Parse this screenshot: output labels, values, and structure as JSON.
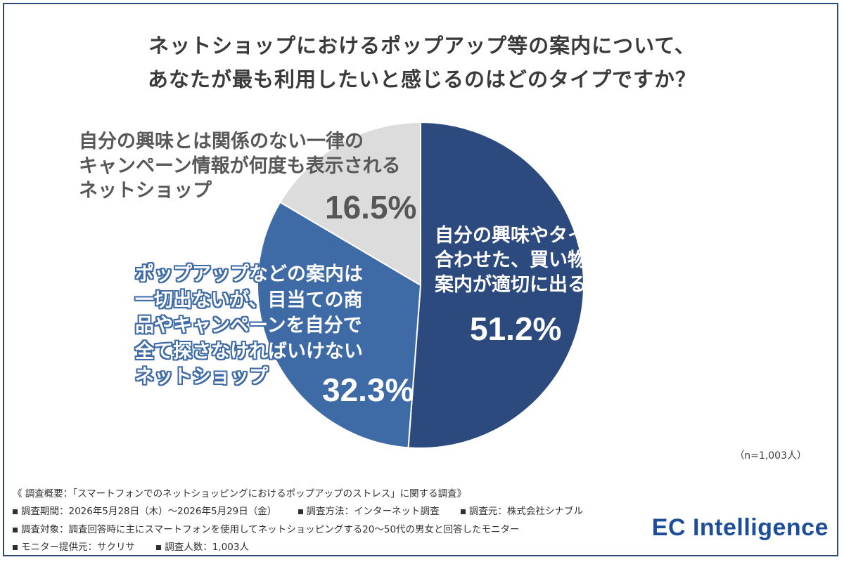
{
  "title_lines": [
    "ネットショップにおけるポップアップ等の案内について、",
    "あなたが最も利用したいと感じるのはどのタイプですか？"
  ],
  "chart_data": {
    "type": "pie",
    "slices": [
      {
        "label_lines": [
          "自分の興味やタイミングに",
          "合わせた、買い物の参考になる",
          "案内が適切に出るネットショップ"
        ],
        "value": 51.2,
        "value_label": "51.2%",
        "color": "#2d4a7f"
      },
      {
        "label_lines": [
          "ポップアップなどの案内は",
          "一切出ないが、目当ての商",
          "品やキャンペーンを自分で",
          "全て探さなければいけない",
          "ネットショップ"
        ],
        "value": 32.3,
        "value_label": "32.3%",
        "color": "#3e6aa6"
      },
      {
        "label_lines": [
          "自分の興味とは関係のない一律の",
          "キャンペーン情報が何度も表示される",
          "ネットショップ"
        ],
        "value": 16.5,
        "value_label": "16.5%",
        "color": "#dcdcdc"
      }
    ]
  },
  "sample_size": "（n=1,003人）",
  "footer": {
    "summary": "《 調査概要：「スマートフォンでのネットショッピングにおけるポップアップのストレス」に関する調査》",
    "period": "調査期間：2026年5月28日（木）～2026年5月29日（金）",
    "method": "調査方法：インターネット調査",
    "source": "調査元：株式会社シナブル",
    "target": "調査対象：調査回答時に主にスマートフォンを使用してネットショッピングする20～50代の男女と回答したモニター",
    "provider": "モニター提供元：サクリサ",
    "count": "調査人数：1,003人"
  },
  "logo": "EC Intelligence"
}
